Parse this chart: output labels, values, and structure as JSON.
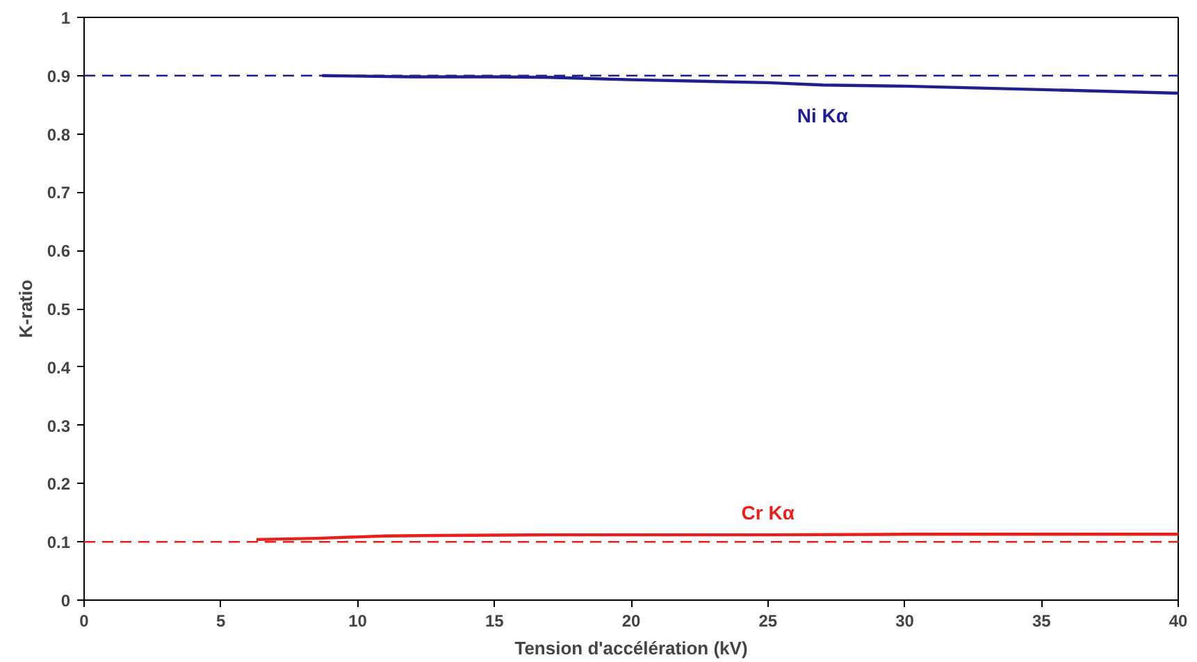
{
  "chart_data": {
    "type": "line",
    "xlabel": "Tension d'accélération (kV)",
    "ylabel": "K-ratio",
    "xlim": [
      0,
      40
    ],
    "ylim": [
      0,
      1
    ],
    "xticks": [
      0,
      5,
      10,
      15,
      20,
      25,
      30,
      35,
      40
    ],
    "yticks": [
      0,
      0.1,
      0.2,
      0.3,
      0.4,
      0.5,
      0.6,
      0.7,
      0.8,
      0.9,
      1
    ],
    "grid": false,
    "legend": false,
    "line_style": "solid",
    "marker": "none",
    "series": [
      {
        "name": "Ni Kα",
        "color": "#1f1f8f",
        "x": [
          8.7,
          12,
          15,
          17,
          20,
          25,
          27,
          30,
          35,
          40
        ],
        "values": [
          0.9,
          0.898,
          0.898,
          0.897,
          0.893,
          0.888,
          0.884,
          0.882,
          0.876,
          0.87
        ]
      },
      {
        "name": "Cr Kα",
        "color": "#e8201c",
        "x": [
          6.3,
          8.5,
          11,
          13,
          17,
          20,
          25,
          30,
          35,
          40
        ],
        "values": [
          0.104,
          0.106,
          0.11,
          0.111,
          0.112,
          0.112,
          0.112,
          0.113,
          0.113,
          0.113
        ]
      }
    ],
    "ref_lines": [
      {
        "axis": "y",
        "value": 0.9,
        "color": "#1f1f8f",
        "line_style": "dashed"
      },
      {
        "axis": "y",
        "value": 0.1,
        "color": "#e8201c",
        "line_style": "dashed"
      }
    ]
  }
}
